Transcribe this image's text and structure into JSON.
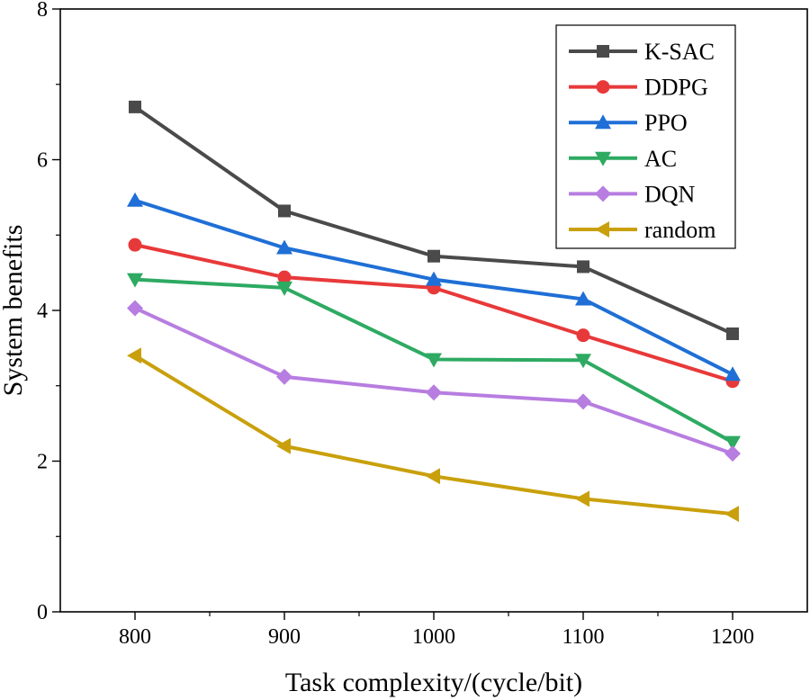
{
  "chart_data": {
    "type": "line",
    "title": "",
    "xlabel": "Task complexity/(cycle/bit)",
    "ylabel": "System benefits",
    "x": [
      800,
      900,
      1000,
      1100,
      1200
    ],
    "xticks": [
      "800",
      "900",
      "1000",
      "1100",
      "1200"
    ],
    "xlim": [
      750,
      1250
    ],
    "ylim": [
      0,
      8
    ],
    "yticks": [
      "0",
      "2",
      "4",
      "6",
      "8"
    ],
    "legend_position": "top-right",
    "series": [
      {
        "name": "K-SAC",
        "marker": "square",
        "color": "#4a4a4a",
        "values": [
          6.7,
          5.32,
          4.72,
          4.58,
          3.69
        ]
      },
      {
        "name": "DDPG",
        "marker": "circle",
        "color": "#e8393a",
        "values": [
          4.87,
          4.44,
          4.3,
          3.67,
          3.06
        ]
      },
      {
        "name": "PPO",
        "marker": "triangle-up",
        "color": "#1f6fd6",
        "values": [
          5.46,
          4.83,
          4.41,
          4.15,
          3.15
        ]
      },
      {
        "name": "AC",
        "marker": "triangle-down",
        "color": "#2eaa62",
        "values": [
          4.41,
          4.3,
          3.35,
          3.34,
          2.25
        ]
      },
      {
        "name": "DQN",
        "marker": "diamond",
        "color": "#b77de0",
        "values": [
          4.03,
          3.12,
          2.91,
          2.79,
          2.1
        ]
      },
      {
        "name": "random",
        "marker": "triangle-left",
        "color": "#c9a00c",
        "values": [
          3.4,
          2.2,
          1.8,
          1.5,
          1.3
        ]
      }
    ]
  }
}
